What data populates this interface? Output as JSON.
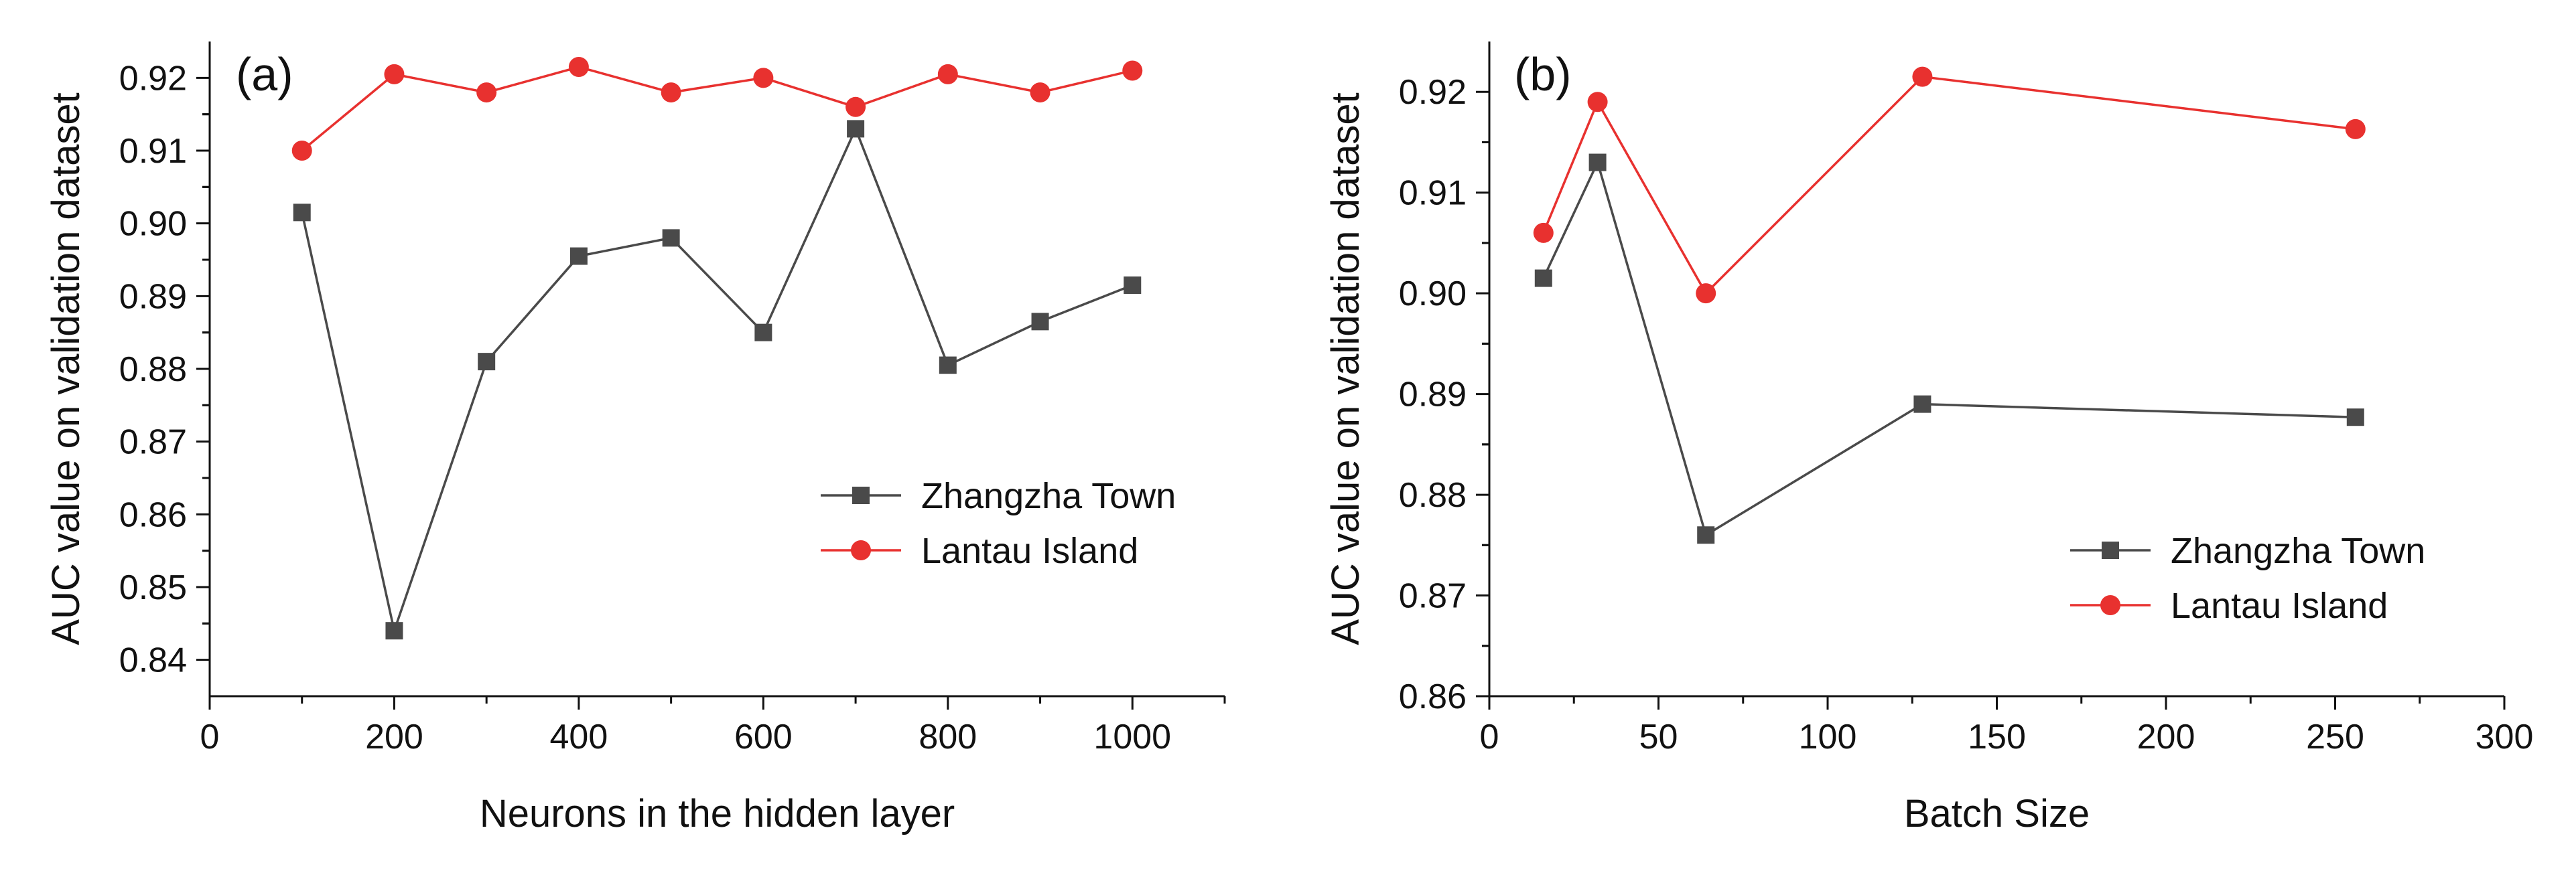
{
  "figure": {
    "colors": {
      "zhangzha": "#4a4a4a",
      "lantau": "#e8312f",
      "axis": "#111111"
    }
  },
  "chart_data": [
    {
      "type": "line",
      "panel_label": "(a)",
      "title": "",
      "xlabel": "Neurons in the hidden layer",
      "ylabel": "AUC value on validation dataset",
      "xlim": [
        0,
        1100
      ],
      "ylim": [
        0.835,
        0.925
      ],
      "xticks": [
        0,
        200,
        400,
        600,
        800,
        1000
      ],
      "xtick_labels": [
        "0",
        "200",
        "400",
        "600",
        "800",
        "1000"
      ],
      "yticks": [
        0.84,
        0.85,
        0.86,
        0.87,
        0.88,
        0.89,
        0.9,
        0.91,
        0.92
      ],
      "ytick_labels": [
        "0.84",
        "0.85",
        "0.86",
        "0.87",
        "0.88",
        "0.89",
        "0.90",
        "0.91",
        "0.92"
      ],
      "x": [
        100,
        200,
        300,
        400,
        500,
        600,
        700,
        800,
        900,
        1000
      ],
      "legend_position": "center-right",
      "series": [
        {
          "name": "Zhangzha Town",
          "marker": "square",
          "color": "#4a4a4a",
          "values": [
            0.9015,
            0.844,
            0.881,
            0.8955,
            0.898,
            0.885,
            0.913,
            0.8805,
            0.8865,
            0.8915
          ]
        },
        {
          "name": "Lantau Island",
          "marker": "circle",
          "color": "#e8312f",
          "values": [
            0.91,
            0.9205,
            0.918,
            0.9215,
            0.918,
            0.92,
            0.916,
            0.9205,
            0.918,
            0.921
          ]
        }
      ]
    },
    {
      "type": "line",
      "panel_label": "(b)",
      "title": "",
      "xlabel": "Batch Size",
      "ylabel": "AUC value on validation dataset",
      "xlim": [
        0,
        300
      ],
      "ylim": [
        0.86,
        0.925
      ],
      "xticks": [
        0,
        50,
        100,
        150,
        200,
        250,
        300
      ],
      "xtick_labels": [
        "0",
        "50",
        "100",
        "150",
        "200",
        "250",
        "300"
      ],
      "yticks": [
        0.86,
        0.87,
        0.88,
        0.89,
        0.9,
        0.91,
        0.92
      ],
      "ytick_labels": [
        "0.86",
        "0.87",
        "0.88",
        "0.89",
        "0.90",
        "0.91",
        "0.92"
      ],
      "x": [
        16,
        32,
        64,
        128,
        256
      ],
      "legend_position": "lower-right",
      "series": [
        {
          "name": "Zhangzha Town",
          "marker": "square",
          "color": "#4a4a4a",
          "values": [
            0.9015,
            0.913,
            0.876,
            0.889,
            0.8877
          ]
        },
        {
          "name": "Lantau Island",
          "marker": "circle",
          "color": "#e8312f",
          "values": [
            0.906,
            0.919,
            0.9,
            0.9215,
            0.9163
          ]
        }
      ]
    }
  ]
}
